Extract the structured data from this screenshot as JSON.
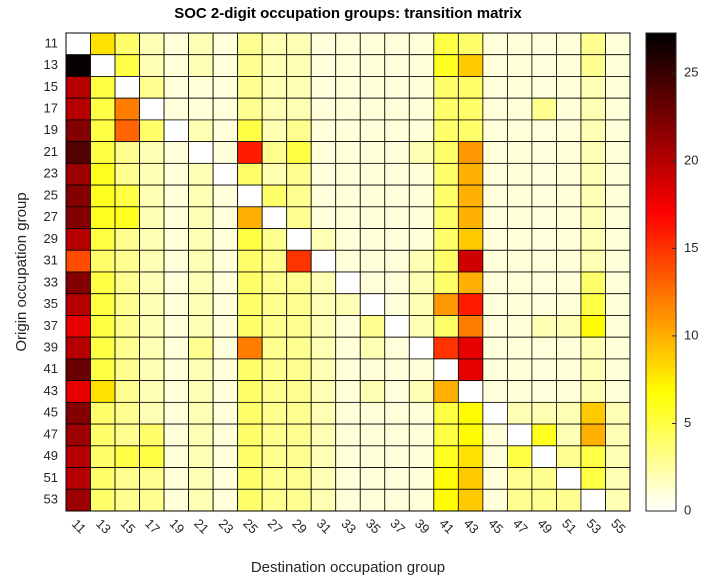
{
  "chart_data": {
    "type": "heatmap",
    "title": "SOC 2-digit occupation groups: transition matrix",
    "x_label": "Destination occupation group",
    "y_label": "Origin occupation group",
    "x": [
      "11",
      "13",
      "15",
      "17",
      "19",
      "21",
      "23",
      "25",
      "27",
      "29",
      "31",
      "33",
      "35",
      "37",
      "39",
      "41",
      "43",
      "45",
      "47",
      "49",
      "51",
      "53",
      "55"
    ],
    "y": [
      "11",
      "13",
      "15",
      "17",
      "19",
      "21",
      "23",
      "25",
      "27",
      "29",
      "31",
      "33",
      "35",
      "37",
      "39",
      "41",
      "43",
      "45",
      "47",
      "49",
      "51",
      "53"
    ],
    "values": [
      [
        0,
        8,
        4,
        2,
        1,
        2,
        1,
        3,
        2,
        2,
        1,
        1,
        1,
        1,
        1,
        5,
        4,
        1,
        1,
        1,
        1,
        3,
        1
      ],
      [
        27,
        0,
        5,
        2,
        1,
        2,
        1,
        3,
        2,
        2,
        1,
        1,
        1,
        1,
        1,
        6,
        9,
        1,
        1,
        1,
        1,
        3,
        1
      ],
      [
        20,
        5,
        0,
        3,
        1,
        1,
        1,
        3,
        2,
        2,
        1,
        1,
        1,
        1,
        1,
        4,
        4,
        1,
        1,
        1,
        1,
        2,
        1
      ],
      [
        20,
        5,
        12,
        0,
        1,
        1,
        1,
        3,
        2,
        2,
        1,
        1,
        1,
        1,
        1,
        4,
        4,
        1,
        1,
        3,
        1,
        2,
        1
      ],
      [
        22,
        5,
        13,
        4,
        0,
        2,
        1,
        5,
        2,
        3,
        1,
        1,
        1,
        1,
        1,
        4,
        4,
        1,
        1,
        1,
        1,
        2,
        1
      ],
      [
        24,
        5,
        3,
        2,
        1,
        0,
        1,
        16,
        3,
        5,
        1,
        1,
        1,
        1,
        2,
        4,
        11,
        1,
        1,
        1,
        1,
        2,
        1
      ],
      [
        21,
        6,
        3,
        2,
        1,
        2,
        0,
        4,
        2,
        3,
        1,
        1,
        1,
        1,
        1,
        4,
        10,
        1,
        1,
        1,
        1,
        2,
        1
      ],
      [
        22,
        6,
        5,
        2,
        1,
        2,
        1,
        0,
        4,
        3,
        1,
        1,
        1,
        1,
        1,
        4,
        10,
        1,
        1,
        1,
        1,
        2,
        1
      ],
      [
        22,
        6,
        6,
        2,
        1,
        2,
        1,
        10,
        0,
        3,
        1,
        1,
        1,
        1,
        1,
        4,
        10,
        1,
        1,
        1,
        1,
        2,
        1
      ],
      [
        20,
        5,
        3,
        2,
        1,
        2,
        1,
        5,
        3,
        0,
        2,
        1,
        1,
        1,
        1,
        4,
        9,
        1,
        1,
        1,
        1,
        2,
        1
      ],
      [
        14,
        4,
        3,
        2,
        1,
        2,
        1,
        4,
        3,
        15,
        0,
        1,
        1,
        1,
        2,
        4,
        19,
        1,
        1,
        1,
        1,
        2,
        1
      ],
      [
        22,
        5,
        3,
        2,
        1,
        2,
        1,
        4,
        3,
        3,
        2,
        0,
        1,
        1,
        2,
        4,
        10,
        1,
        1,
        1,
        1,
        4,
        1
      ],
      [
        20,
        5,
        3,
        2,
        1,
        2,
        1,
        4,
        3,
        3,
        2,
        2,
        0,
        1,
        2,
        11,
        16,
        1,
        1,
        1,
        1,
        5,
        1
      ],
      [
        18,
        5,
        3,
        2,
        1,
        2,
        1,
        4,
        3,
        3,
        2,
        1,
        3,
        0,
        2,
        4,
        12,
        1,
        1,
        2,
        2,
        7,
        1
      ],
      [
        20,
        5,
        3,
        2,
        1,
        3,
        1,
        12,
        3,
        3,
        2,
        1,
        2,
        1,
        0,
        15,
        18,
        1,
        1,
        1,
        1,
        2,
        1
      ],
      [
        23,
        5,
        3,
        2,
        1,
        2,
        1,
        4,
        3,
        3,
        2,
        1,
        1,
        1,
        1,
        0,
        18,
        1,
        1,
        1,
        1,
        2,
        1
      ],
      [
        18,
        8,
        3,
        2,
        1,
        2,
        1,
        4,
        3,
        3,
        2,
        1,
        2,
        1,
        2,
        10,
        0,
        1,
        1,
        1,
        1,
        2,
        1
      ],
      [
        22,
        4,
        3,
        2,
        1,
        2,
        1,
        4,
        3,
        3,
        2,
        1,
        1,
        1,
        1,
        5,
        7,
        0,
        2,
        2,
        2,
        9,
        2
      ],
      [
        21,
        4,
        3,
        4,
        1,
        2,
        1,
        4,
        3,
        3,
        2,
        1,
        1,
        1,
        1,
        5,
        7,
        1,
        0,
        6,
        2,
        10,
        2
      ],
      [
        20,
        4,
        5,
        5,
        1,
        2,
        1,
        4,
        3,
        3,
        2,
        1,
        1,
        1,
        1,
        6,
        8,
        1,
        5,
        0,
        3,
        5,
        2
      ],
      [
        20,
        4,
        3,
        3,
        1,
        2,
        1,
        4,
        3,
        3,
        2,
        1,
        1,
        1,
        1,
        7,
        9,
        1,
        3,
        3,
        0,
        5,
        2
      ],
      [
        21,
        4,
        3,
        3,
        1,
        2,
        1,
        4,
        3,
        3,
        2,
        1,
        1,
        1,
        1,
        7,
        9,
        1,
        3,
        3,
        3,
        0,
        2
      ]
    ],
    "colormap": "hot-reversed",
    "colorbar_lim": [
      0,
      27.3
    ],
    "colorbar_ticks": [
      0,
      5,
      10,
      15,
      20,
      25
    ]
  }
}
